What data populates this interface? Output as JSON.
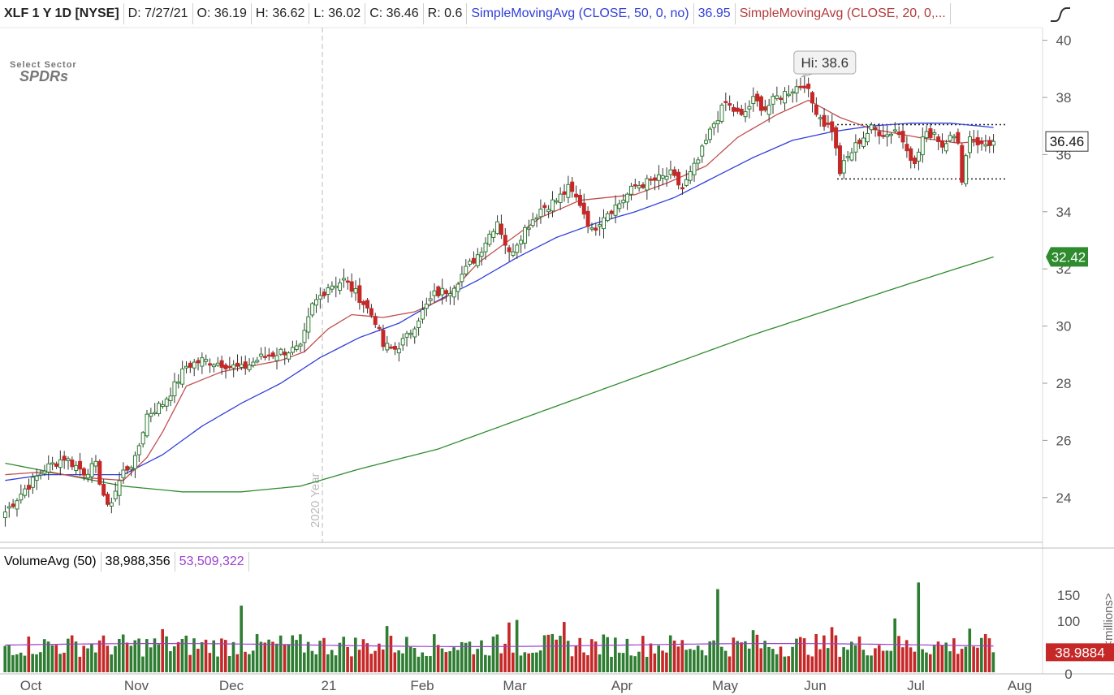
{
  "header": {
    "symbol": "XLF 1 Y 1D [NYSE]",
    "date": "D: 7/27/21",
    "open": "O: 36.19",
    "high": "H: 36.62",
    "low": "L: 36.02",
    "close": "C: 36.46",
    "range": "R: 0.6",
    "sma50_label": "SimpleMovingAvg (CLOSE, 50, 0, no)",
    "sma50_value": "36.95",
    "sma20_label": "SimpleMovingAvg (CLOSE, 20, 0,..."
  },
  "logo": {
    "line1": "Select Sector",
    "line2": "SPDRs"
  },
  "volume_header": {
    "label": "VolumeAvg (50)",
    "volume": "38,988,356",
    "avg": "53,509,322"
  },
  "colors": {
    "up": "#2e7d32",
    "down": "#c62828",
    "sma50": "#2f3ed8",
    "sma20": "#c0504d",
    "sma200": "#2e8b2e",
    "vol_avg": "#9b3fd0"
  },
  "chart_data": {
    "type": "candlestick",
    "ylim": [
      23,
      41
    ],
    "yticks": [
      "40",
      "38",
      "36",
      "34",
      "32",
      "30",
      "28",
      "26",
      "24"
    ],
    "xticks": [
      "Oct",
      "Nov",
      "Dec",
      "21",
      "Feb",
      "Mar",
      "Apr",
      "May",
      "Jun",
      "Jul",
      "Aug"
    ],
    "year_marker": "2020 Year",
    "high_annotation": "Hi: 38.6",
    "price_labels": {
      "last": "36.46",
      "sma200": "32.42"
    },
    "support_resistance": {
      "upper": 37.05,
      "lower": 35.15
    },
    "price_anchors": [
      [
        0,
        23.5
      ],
      [
        5,
        24.3
      ],
      [
        10,
        25.0
      ],
      [
        15,
        25.4
      ],
      [
        20,
        24.9
      ],
      [
        23,
        25.1
      ],
      [
        26,
        23.6
      ],
      [
        30,
        24.9
      ],
      [
        33,
        25.3
      ],
      [
        36,
        26.9
      ],
      [
        40,
        27.3
      ],
      [
        43,
        27.9
      ],
      [
        46,
        28.6
      ],
      [
        50,
        28.8
      ],
      [
        55,
        28.7
      ],
      [
        60,
        28.5
      ],
      [
        65,
        28.9
      ],
      [
        70,
        29.1
      ],
      [
        75,
        29.2
      ],
      [
        78,
        30.7
      ],
      [
        82,
        31.4
      ],
      [
        86,
        31.6
      ],
      [
        90,
        31.0
      ],
      [
        94,
        30.2
      ],
      [
        96,
        29.3
      ],
      [
        99,
        29.2
      ],
      [
        102,
        29.6
      ],
      [
        105,
        30.3
      ],
      [
        109,
        31.1
      ],
      [
        113,
        31.3
      ],
      [
        116,
        31.8
      ],
      [
        120,
        32.5
      ],
      [
        125,
        33.7
      ],
      [
        128,
        32.5
      ],
      [
        132,
        33.4
      ],
      [
        136,
        34.1
      ],
      [
        140,
        34.4
      ],
      [
        143,
        34.8
      ],
      [
        146,
        34.3
      ],
      [
        149,
        33.3
      ],
      [
        152,
        33.9
      ],
      [
        156,
        34.3
      ],
      [
        160,
        34.9
      ],
      [
        165,
        35.1
      ],
      [
        169,
        35.3
      ],
      [
        172,
        34.8
      ],
      [
        176,
        35.8
      ],
      [
        180,
        37.1
      ],
      [
        183,
        37.8
      ],
      [
        187,
        37.3
      ],
      [
        190,
        37.9
      ],
      [
        193,
        37.6
      ],
      [
        196,
        38.0
      ],
      [
        200,
        38.3
      ],
      [
        203,
        38.5
      ],
      [
        205,
        37.8
      ],
      [
        208,
        37.1
      ],
      [
        210,
        36.9
      ],
      [
        212,
        35.4
      ],
      [
        214,
        35.9
      ],
      [
        217,
        36.5
      ],
      [
        220,
        36.9
      ],
      [
        224,
        36.7
      ],
      [
        226,
        36.9
      ],
      [
        229,
        36.3
      ],
      [
        231,
        35.6
      ],
      [
        233,
        36.6
      ],
      [
        236,
        36.8
      ],
      [
        238,
        36.3
      ],
      [
        240,
        36.8
      ],
      [
        242,
        36.3
      ],
      [
        243,
        35.2
      ],
      [
        245,
        36.7
      ],
      [
        248,
        36.3
      ],
      [
        251,
        36.46
      ]
    ],
    "sma20_anchors": [
      [
        0,
        24.8
      ],
      [
        10,
        24.9
      ],
      [
        20,
        24.7
      ],
      [
        30,
        24.6
      ],
      [
        36,
        25.4
      ],
      [
        40,
        26.3
      ],
      [
        46,
        27.9
      ],
      [
        55,
        28.4
      ],
      [
        70,
        28.8
      ],
      [
        76,
        29.1
      ],
      [
        82,
        29.9
      ],
      [
        88,
        30.4
      ],
      [
        96,
        30.3
      ],
      [
        104,
        30.5
      ],
      [
        112,
        31.0
      ],
      [
        120,
        32.2
      ],
      [
        128,
        33.0
      ],
      [
        136,
        33.8
      ],
      [
        146,
        34.4
      ],
      [
        160,
        34.6
      ],
      [
        168,
        35.0
      ],
      [
        178,
        35.6
      ],
      [
        186,
        36.6
      ],
      [
        196,
        37.4
      ],
      [
        204,
        37.9
      ],
      [
        212,
        37.3
      ],
      [
        220,
        36.9
      ],
      [
        232,
        36.6
      ],
      [
        242,
        36.4
      ],
      [
        251,
        36.5
      ]
    ],
    "sma50_anchors": [
      [
        0,
        24.6
      ],
      [
        10,
        24.8
      ],
      [
        20,
        24.8
      ],
      [
        30,
        24.8
      ],
      [
        40,
        25.5
      ],
      [
        50,
        26.5
      ],
      [
        60,
        27.3
      ],
      [
        70,
        28.0
      ],
      [
        80,
        28.9
      ],
      [
        90,
        29.6
      ],
      [
        100,
        30.1
      ],
      [
        110,
        30.9
      ],
      [
        120,
        31.6
      ],
      [
        130,
        32.4
      ],
      [
        140,
        33.1
      ],
      [
        150,
        33.6
      ],
      [
        160,
        34.0
      ],
      [
        170,
        34.5
      ],
      [
        180,
        35.2
      ],
      [
        190,
        35.9
      ],
      [
        200,
        36.5
      ],
      [
        210,
        36.8
      ],
      [
        220,
        37.0
      ],
      [
        230,
        37.1
      ],
      [
        240,
        37.1
      ],
      [
        251,
        36.95
      ]
    ],
    "sma200_anchors": [
      [
        0,
        25.2
      ],
      [
        15,
        24.8
      ],
      [
        30,
        24.4
      ],
      [
        45,
        24.2
      ],
      [
        60,
        24.2
      ],
      [
        75,
        24.4
      ],
      [
        90,
        25.0
      ],
      [
        110,
        25.7
      ],
      [
        130,
        26.7
      ],
      [
        150,
        27.7
      ],
      [
        170,
        28.7
      ],
      [
        190,
        29.7
      ],
      [
        210,
        30.6
      ],
      [
        230,
        31.5
      ],
      [
        251,
        32.42
      ]
    ],
    "volume": {
      "ylim": [
        0,
        200
      ],
      "yticks": [
        "150",
        "100",
        "0"
      ],
      "unit_label": "<millions>",
      "last_value": "38.9884",
      "avg": 53,
      "spikes": [
        [
          60,
          130
        ],
        [
          181,
          162
        ],
        [
          97,
          90
        ],
        [
          232,
          175
        ],
        [
          226,
          105
        ],
        [
          130,
          102
        ],
        [
          128,
          97
        ],
        [
          190,
          82
        ],
        [
          210,
          88
        ],
        [
          245,
          85
        ],
        [
          142,
          98
        ],
        [
          40,
          84
        ]
      ]
    }
  }
}
